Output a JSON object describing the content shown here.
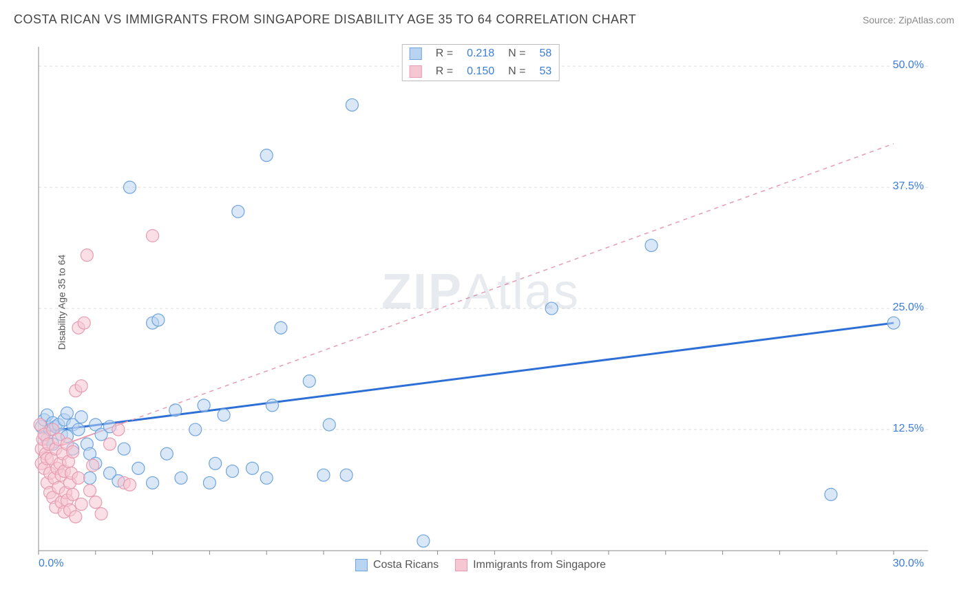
{
  "title": "COSTA RICAN VS IMMIGRANTS FROM SINGAPORE DISABILITY AGE 35 TO 64 CORRELATION CHART",
  "source": "Source: ZipAtlas.com",
  "y_axis_label": "Disability Age 35 to 64",
  "watermark_bold": "ZIP",
  "watermark_rest": "Atlas",
  "stats": [
    {
      "swatch_fill": "#b9d4f0",
      "swatch_stroke": "#6ea4de",
      "r_label": "R =",
      "r": "0.218",
      "n_label": "N =",
      "n": "58"
    },
    {
      "swatch_fill": "#f6c6d2",
      "swatch_stroke": "#e79bb0",
      "r_label": "R =",
      "r": "0.150",
      "n_label": "N =",
      "n": "53"
    }
  ],
  "legend": [
    {
      "swatch_fill": "#b9d4f0",
      "swatch_stroke": "#6ea4de",
      "label": "Costa Ricans"
    },
    {
      "swatch_fill": "#f6c6d2",
      "swatch_stroke": "#e79bb0",
      "label": "Immigrants from Singapore"
    }
  ],
  "chart": {
    "type": "scatter",
    "xlim": [
      0,
      30
    ],
    "ylim": [
      0,
      52
    ],
    "x_ticks_minor": [
      0,
      2,
      4,
      6,
      8,
      10,
      12,
      14,
      16,
      18,
      20,
      22,
      24,
      26,
      28,
      30
    ],
    "y_gridlines": [
      12.5,
      25.0,
      37.5,
      50.0
    ],
    "x_axis_labels": [
      {
        "v": 0,
        "t": "0.0%"
      },
      {
        "v": 30,
        "t": "30.0%"
      }
    ],
    "y_axis_labels": [
      {
        "v": 12.5,
        "t": "12.5%"
      },
      {
        "v": 25.0,
        "t": "25.0%"
      },
      {
        "v": 37.5,
        "t": "37.5%"
      },
      {
        "v": 50.0,
        "t": "50.0%"
      }
    ],
    "marker_radius": 9,
    "marker_opacity": 0.55,
    "background": "#ffffff",
    "grid_color": "#dddddd",
    "axis_color": "#888888",
    "series": [
      {
        "name": "Costa Ricans",
        "point_fill": "#b9d4f0",
        "point_stroke": "#6ea4de",
        "line_color": "#2e6fd6",
        "line_dash": "none",
        "line_width": 3,
        "trend": {
          "x1": 0,
          "y1": 12.2,
          "x2": 30,
          "y2": 23.5
        },
        "points": [
          [
            0.1,
            12.8
          ],
          [
            0.2,
            13.5
          ],
          [
            0.2,
            12.0
          ],
          [
            0.3,
            11.5
          ],
          [
            0.3,
            14.0
          ],
          [
            0.4,
            12.5
          ],
          [
            0.5,
            13.2
          ],
          [
            0.5,
            11.0
          ],
          [
            0.6,
            12.8
          ],
          [
            0.7,
            13.0
          ],
          [
            0.8,
            12.0
          ],
          [
            0.9,
            13.5
          ],
          [
            1.0,
            11.8
          ],
          [
            1.0,
            14.2
          ],
          [
            1.2,
            10.5
          ],
          [
            1.2,
            13.0
          ],
          [
            1.4,
            12.5
          ],
          [
            1.5,
            13.8
          ],
          [
            1.7,
            11.0
          ],
          [
            1.8,
            10.0
          ],
          [
            1.8,
            7.5
          ],
          [
            2.0,
            9.0
          ],
          [
            2.0,
            13.0
          ],
          [
            2.2,
            12.0
          ],
          [
            2.5,
            12.8
          ],
          [
            2.5,
            8.0
          ],
          [
            2.8,
            7.2
          ],
          [
            3.0,
            10.5
          ],
          [
            3.2,
            37.5
          ],
          [
            3.5,
            8.5
          ],
          [
            4.0,
            7.0
          ],
          [
            4.0,
            23.5
          ],
          [
            4.2,
            23.8
          ],
          [
            4.5,
            10.0
          ],
          [
            4.8,
            14.5
          ],
          [
            5.0,
            7.5
          ],
          [
            5.5,
            12.5
          ],
          [
            5.8,
            15.0
          ],
          [
            6.0,
            7.0
          ],
          [
            6.2,
            9.0
          ],
          [
            6.5,
            14.0
          ],
          [
            6.8,
            8.2
          ],
          [
            7.0,
            35.0
          ],
          [
            7.5,
            8.5
          ],
          [
            8.0,
            40.8
          ],
          [
            8.0,
            7.5
          ],
          [
            8.2,
            15.0
          ],
          [
            8.5,
            23.0
          ],
          [
            9.5,
            17.5
          ],
          [
            10.0,
            7.8
          ],
          [
            10.2,
            13.0
          ],
          [
            10.8,
            7.8
          ],
          [
            11.0,
            46.0
          ],
          [
            13.5,
            1.0
          ],
          [
            18.0,
            25.0
          ],
          [
            21.5,
            31.5
          ],
          [
            27.8,
            5.8
          ],
          [
            30.0,
            23.5
          ]
        ]
      },
      {
        "name": "Immigrants from Singapore",
        "point_fill": "#f6c6d2",
        "point_stroke": "#e79bb0",
        "line_color": "#e79bb0",
        "line_dash": "6,6",
        "line_width": 1.5,
        "trend_solid_until_x": 3.0,
        "trend": {
          "x1": 0,
          "y1": 10.0,
          "x2": 30,
          "y2": 42.0
        },
        "points": [
          [
            0.05,
            13.0
          ],
          [
            0.1,
            10.5
          ],
          [
            0.1,
            9.0
          ],
          [
            0.15,
            11.5
          ],
          [
            0.2,
            12.0
          ],
          [
            0.2,
            8.5
          ],
          [
            0.25,
            10.0
          ],
          [
            0.3,
            9.5
          ],
          [
            0.3,
            7.0
          ],
          [
            0.35,
            11.0
          ],
          [
            0.4,
            8.0
          ],
          [
            0.4,
            6.0
          ],
          [
            0.45,
            9.5
          ],
          [
            0.5,
            12.5
          ],
          [
            0.5,
            5.5
          ],
          [
            0.55,
            7.5
          ],
          [
            0.6,
            10.5
          ],
          [
            0.6,
            4.5
          ],
          [
            0.65,
            8.5
          ],
          [
            0.7,
            11.5
          ],
          [
            0.7,
            6.5
          ],
          [
            0.75,
            9.0
          ],
          [
            0.8,
            5.0
          ],
          [
            0.8,
            7.8
          ],
          [
            0.85,
            10.0
          ],
          [
            0.9,
            4.0
          ],
          [
            0.9,
            8.2
          ],
          [
            0.95,
            6.0
          ],
          [
            1.0,
            11.0
          ],
          [
            1.0,
            5.2
          ],
          [
            1.05,
            9.2
          ],
          [
            1.1,
            7.0
          ],
          [
            1.1,
            4.2
          ],
          [
            1.15,
            8.0
          ],
          [
            1.2,
            10.2
          ],
          [
            1.2,
            5.8
          ],
          [
            1.3,
            3.5
          ],
          [
            1.3,
            16.5
          ],
          [
            1.4,
            7.5
          ],
          [
            1.4,
            23.0
          ],
          [
            1.5,
            17.0
          ],
          [
            1.5,
            4.8
          ],
          [
            1.6,
            23.5
          ],
          [
            1.7,
            30.5
          ],
          [
            1.8,
            6.2
          ],
          [
            1.9,
            8.8
          ],
          [
            2.0,
            5.0
          ],
          [
            2.2,
            3.8
          ],
          [
            2.5,
            11.0
          ],
          [
            2.8,
            12.5
          ],
          [
            3.0,
            7.0
          ],
          [
            3.2,
            6.8
          ],
          [
            4.0,
            32.5
          ]
        ]
      }
    ]
  }
}
